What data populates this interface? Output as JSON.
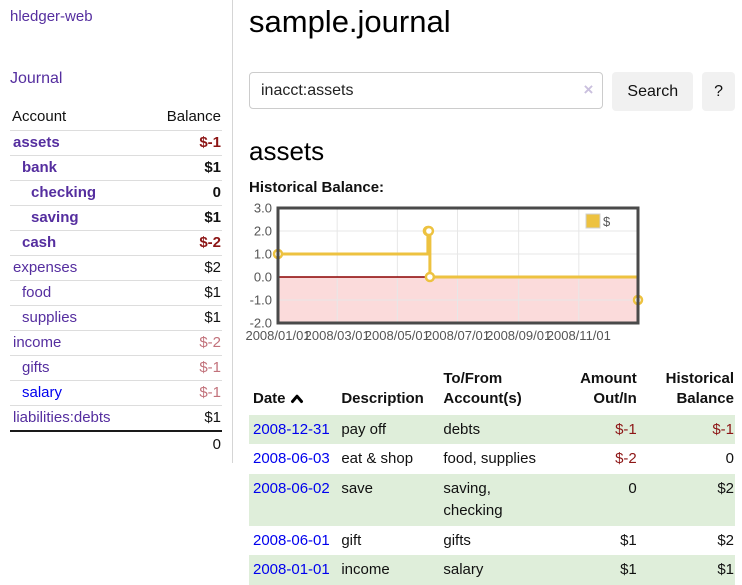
{
  "colors": {
    "accent_purple": "#552e9f",
    "link_blue": "#0000ee",
    "negative_dark": "#8d1616",
    "negative_soft": "#c2727b",
    "stripe_green": "#dfeeda",
    "chart_gold": "#edc240"
  },
  "sidebar": {
    "brand": "hledger-web",
    "journal_link": "Journal",
    "accounts": {
      "headers": [
        "Account",
        "Balance"
      ],
      "rows": [
        {
          "name": "assets",
          "depth": 1,
          "bold": true,
          "balance": "$-1",
          "balance_style": "negative"
        },
        {
          "name": "bank",
          "depth": 2,
          "bold": true,
          "balance": "$1",
          "balance_style": "normal"
        },
        {
          "name": "checking",
          "depth": 3,
          "bold": true,
          "balance": "0",
          "balance_style": "normal"
        },
        {
          "name": "saving",
          "depth": 3,
          "bold": true,
          "balance": "$1",
          "balance_style": "normal"
        },
        {
          "name": "cash",
          "depth": 2,
          "bold": true,
          "balance": "$-2",
          "balance_style": "negative"
        },
        {
          "name": "expenses",
          "depth": 1,
          "bold": false,
          "balance": "$2",
          "balance_style": "normal"
        },
        {
          "name": "food",
          "depth": 2,
          "bold": false,
          "balance": "$1",
          "balance_style": "normal"
        },
        {
          "name": "supplies",
          "depth": 2,
          "bold": false,
          "balance": "$1",
          "balance_style": "normal"
        },
        {
          "name": "income",
          "depth": 1,
          "bold": false,
          "balance": "$-2",
          "balance_style": "negative-soft"
        },
        {
          "name": "gifts",
          "depth": 2,
          "bold": false,
          "balance": "$-1",
          "balance_style": "negative-soft"
        },
        {
          "name": "salary",
          "depth": 2,
          "bold": false,
          "balance": "$-1",
          "balance_style": "negative-soft",
          "link_style": "blue"
        },
        {
          "name": "liabilities:debts",
          "depth": 1,
          "bold": false,
          "balance": "$1",
          "balance_style": "normal"
        }
      ],
      "total": "0"
    }
  },
  "header": {
    "title": "sample.journal"
  },
  "search": {
    "value": "inacct:assets",
    "clear_icon": "×",
    "button_label": "Search",
    "help_label": "?"
  },
  "account_page": {
    "heading": "assets",
    "chart_label": "Historical Balance:"
  },
  "chart_data": {
    "type": "line",
    "step": true,
    "title": "Historical Balance:",
    "x_start": "2008-01-01",
    "x_end": "2008-12-31",
    "x_ticks": [
      "2008/01/01",
      "2008/03/01",
      "2008/05/01",
      "2008/07/01",
      "2008/09/01",
      "2008/11/01"
    ],
    "y_ticks": [
      3.0,
      2.0,
      1.0,
      0.0,
      -1.0,
      -2.0
    ],
    "ylim": [
      -2.0,
      3.0
    ],
    "grid": true,
    "legend_position": "top-right",
    "series": [
      {
        "name": "$",
        "color": "#edc240",
        "points": [
          {
            "x": "2008-01-01",
            "y": 1
          },
          {
            "x": "2008-06-01",
            "y": 2
          },
          {
            "x": "2008-06-02",
            "y": 2
          },
          {
            "x": "2008-06-03",
            "y": 0
          },
          {
            "x": "2008-12-31",
            "y": -1
          }
        ]
      }
    ],
    "negative_region_color": "#fbdbdb",
    "zero_line_color": "#8b0000",
    "border_color": "#4a4a4a",
    "gridline_color": "#e7e7e7",
    "tick_label_color": "#555555"
  },
  "register": {
    "headers": [
      "Date",
      "Description",
      "To/From Account(s)",
      "Amount Out/In",
      "Historical Balance"
    ],
    "sort": {
      "column": "Date",
      "direction": "asc"
    },
    "rows": [
      {
        "date": "2008-12-31",
        "description": "pay off",
        "accounts": "debts",
        "amount": "$-1",
        "amount_style": "negative",
        "balance": "$-1",
        "balance_style": "negative"
      },
      {
        "date": "2008-06-03",
        "description": "eat & shop",
        "accounts": "food, supplies",
        "amount": "$-2",
        "amount_style": "negative",
        "balance": "0",
        "balance_style": "normal"
      },
      {
        "date": "2008-06-02",
        "description": "save",
        "accounts": "saving, checking",
        "amount": "0",
        "amount_style": "normal",
        "balance": "$2",
        "balance_style": "normal"
      },
      {
        "date": "2008-06-01",
        "description": "gift",
        "accounts": "gifts",
        "amount": "$1",
        "amount_style": "normal",
        "balance": "$2",
        "balance_style": "normal"
      },
      {
        "date": "2008-01-01",
        "description": "income",
        "accounts": "salary",
        "amount": "$1",
        "amount_style": "normal",
        "balance": "$1",
        "balance_style": "normal"
      }
    ]
  }
}
